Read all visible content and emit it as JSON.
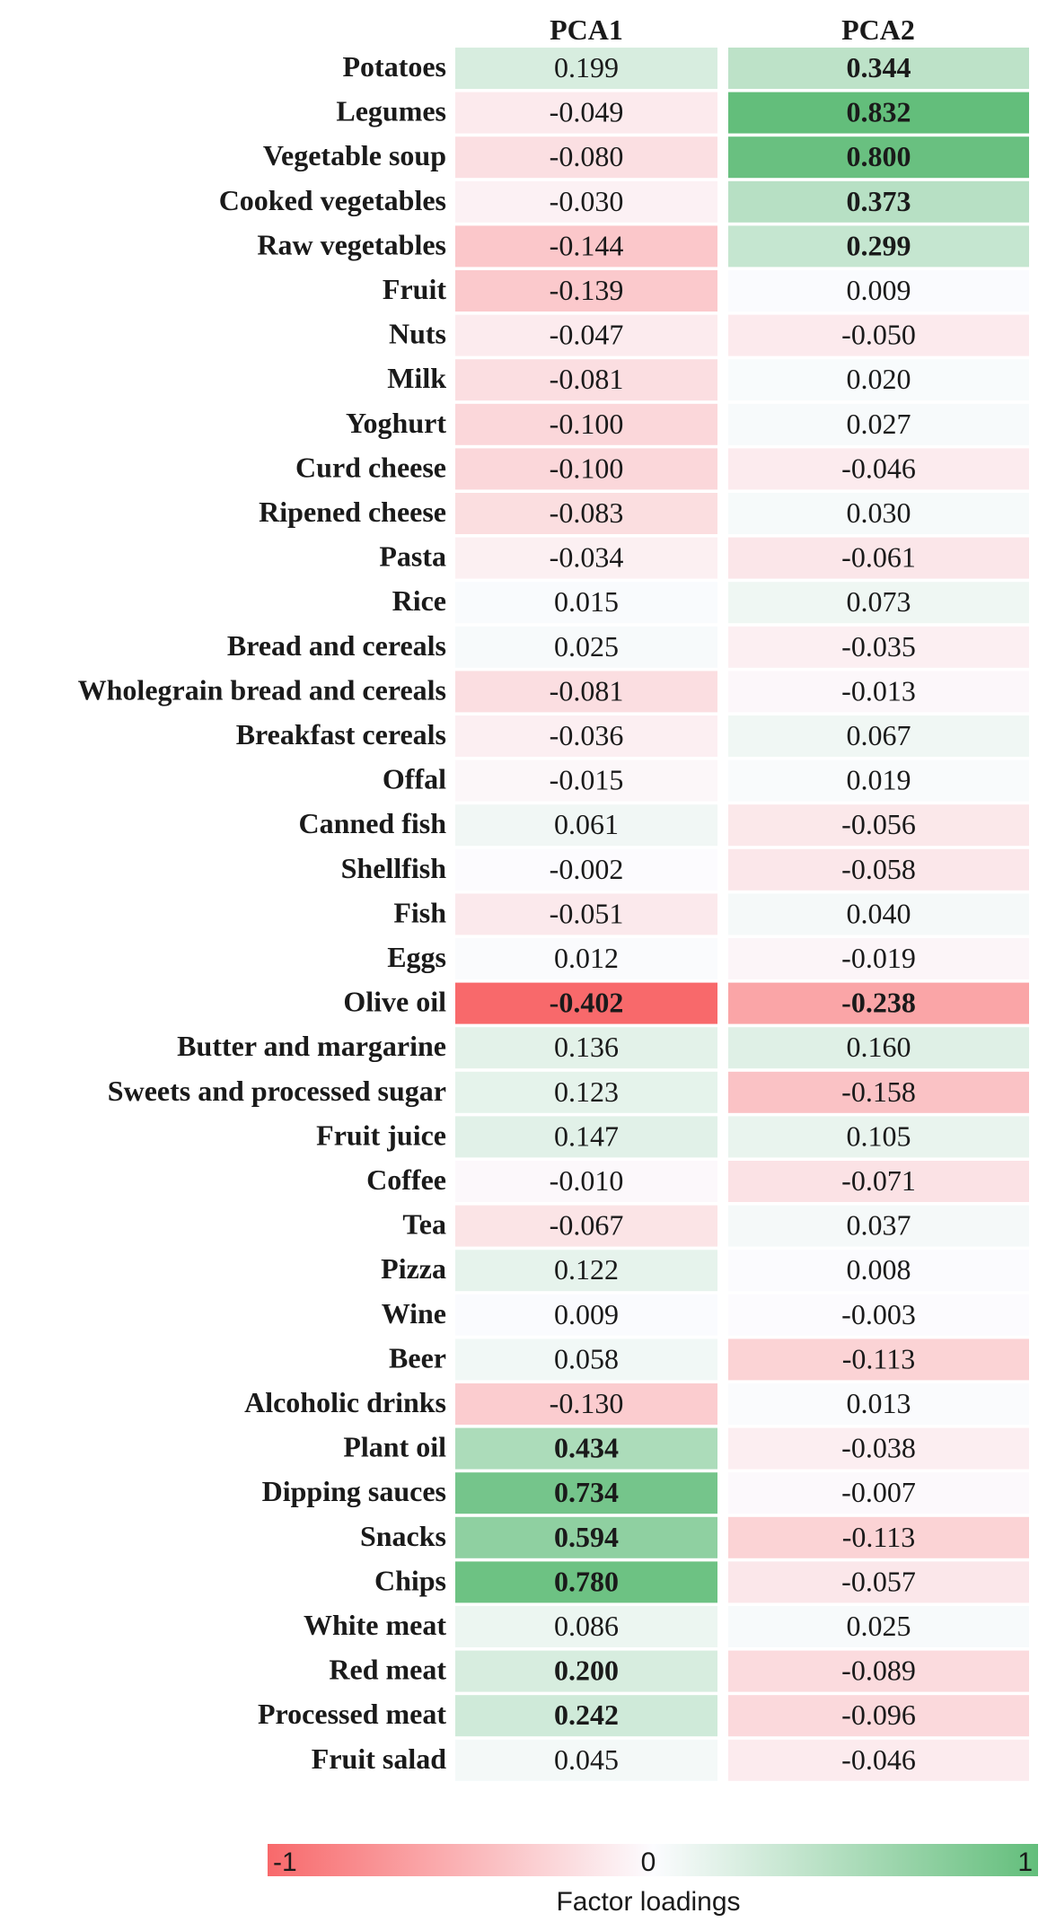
{
  "chart_data": {
    "type": "heatmap",
    "title": "",
    "columns": [
      "PCA1",
      "PCA2"
    ],
    "rows": [
      {
        "label": "Potatoes",
        "values": [
          0.199,
          0.344
        ],
        "text": [
          "0.199",
          "0.344"
        ],
        "bold": [
          false,
          true
        ]
      },
      {
        "label": "Legumes",
        "values": [
          -0.049,
          0.832
        ],
        "text": [
          "-0.049",
          "0.832"
        ],
        "bold": [
          false,
          true
        ]
      },
      {
        "label": "Vegetable soup",
        "values": [
          -0.08,
          0.8
        ],
        "text": [
          "-0.080",
          "0.800"
        ],
        "bold": [
          false,
          true
        ]
      },
      {
        "label": "Cooked vegetables",
        "values": [
          -0.03,
          0.373
        ],
        "text": [
          "-0.030",
          "0.373"
        ],
        "bold": [
          false,
          true
        ]
      },
      {
        "label": "Raw vegetables",
        "values": [
          -0.144,
          0.299
        ],
        "text": [
          "-0.144",
          "0.299"
        ],
        "bold": [
          false,
          true
        ]
      },
      {
        "label": "Fruit",
        "values": [
          -0.139,
          0.009
        ],
        "text": [
          "-0.139",
          "0.009"
        ],
        "bold": [
          false,
          false
        ]
      },
      {
        "label": "Nuts",
        "values": [
          -0.047,
          -0.05
        ],
        "text": [
          "-0.047",
          "-0.050"
        ],
        "bold": [
          false,
          false
        ]
      },
      {
        "label": "Milk",
        "values": [
          -0.081,
          0.02
        ],
        "text": [
          "-0.081",
          "0.020"
        ],
        "bold": [
          false,
          false
        ]
      },
      {
        "label": "Yoghurt",
        "values": [
          -0.1,
          0.027
        ],
        "text": [
          "-0.100",
          "0.027"
        ],
        "bold": [
          false,
          false
        ]
      },
      {
        "label": "Curd cheese",
        "values": [
          -0.1,
          -0.046
        ],
        "text": [
          "-0.100",
          "-0.046"
        ],
        "bold": [
          false,
          false
        ]
      },
      {
        "label": "Ripened cheese",
        "values": [
          -0.083,
          0.03
        ],
        "text": [
          "-0.083",
          "0.030"
        ],
        "bold": [
          false,
          false
        ]
      },
      {
        "label": "Pasta",
        "values": [
          -0.034,
          -0.061
        ],
        "text": [
          "-0.034",
          "-0.061"
        ],
        "bold": [
          false,
          false
        ]
      },
      {
        "label": "Rice",
        "values": [
          0.015,
          0.073
        ],
        "text": [
          "0.015",
          "0.073"
        ],
        "bold": [
          false,
          false
        ]
      },
      {
        "label": "Bread and cereals",
        "values": [
          0.025,
          -0.035
        ],
        "text": [
          "0.025",
          "-0.035"
        ],
        "bold": [
          false,
          false
        ]
      },
      {
        "label": "Wholegrain bread and cereals",
        "values": [
          -0.081,
          -0.013
        ],
        "text": [
          "-0.081",
          "-0.013"
        ],
        "bold": [
          false,
          false
        ]
      },
      {
        "label": "Breakfast cereals",
        "values": [
          -0.036,
          0.067
        ],
        "text": [
          "-0.036",
          "0.067"
        ],
        "bold": [
          false,
          false
        ]
      },
      {
        "label": "Offal",
        "values": [
          -0.015,
          0.019
        ],
        "text": [
          "-0.015",
          "0.019"
        ],
        "bold": [
          false,
          false
        ]
      },
      {
        "label": "Canned fish",
        "values": [
          0.061,
          -0.056
        ],
        "text": [
          "0.061",
          "-0.056"
        ],
        "bold": [
          false,
          false
        ]
      },
      {
        "label": "Shellfish",
        "values": [
          -0.002,
          -0.058
        ],
        "text": [
          "-0.002",
          "-0.058"
        ],
        "bold": [
          false,
          false
        ]
      },
      {
        "label": "Fish",
        "values": [
          -0.051,
          0.04
        ],
        "text": [
          "-0.051",
          "0.040"
        ],
        "bold": [
          false,
          false
        ]
      },
      {
        "label": "Eggs",
        "values": [
          0.012,
          -0.019
        ],
        "text": [
          "0.012",
          "-0.019"
        ],
        "bold": [
          false,
          false
        ]
      },
      {
        "label": "Olive oil",
        "values": [
          -0.402,
          -0.238
        ],
        "text": [
          "-0.402",
          "-0.238"
        ],
        "bold": [
          true,
          true
        ]
      },
      {
        "label": "Butter and margarine",
        "values": [
          0.136,
          0.16
        ],
        "text": [
          "0.136",
          "0.160"
        ],
        "bold": [
          false,
          false
        ]
      },
      {
        "label": "Sweets and processed sugar",
        "values": [
          0.123,
          -0.158
        ],
        "text": [
          "0.123",
          "-0.158"
        ],
        "bold": [
          false,
          false
        ]
      },
      {
        "label": "Fruit juice",
        "values": [
          0.147,
          0.105
        ],
        "text": [
          "0.147",
          "0.105"
        ],
        "bold": [
          false,
          false
        ]
      },
      {
        "label": "Coffee",
        "values": [
          -0.01,
          -0.071
        ],
        "text": [
          "-0.010",
          "-0.071"
        ],
        "bold": [
          false,
          false
        ]
      },
      {
        "label": "Tea",
        "values": [
          -0.067,
          0.037
        ],
        "text": [
          "-0.067",
          "0.037"
        ],
        "bold": [
          false,
          false
        ]
      },
      {
        "label": "Pizza",
        "values": [
          0.122,
          0.008
        ],
        "text": [
          "0.122",
          "0.008"
        ],
        "bold": [
          false,
          false
        ]
      },
      {
        "label": "Wine",
        "values": [
          0.009,
          -0.003
        ],
        "text": [
          "0.009",
          "-0.003"
        ],
        "bold": [
          false,
          false
        ]
      },
      {
        "label": "Beer",
        "values": [
          0.058,
          -0.113
        ],
        "text": [
          "0.058",
          "-0.113"
        ],
        "bold": [
          false,
          false
        ]
      },
      {
        "label": "Alcoholic drinks",
        "values": [
          -0.13,
          0.013
        ],
        "text": [
          "-0.130",
          "0.013"
        ],
        "bold": [
          false,
          false
        ]
      },
      {
        "label": "Plant oil",
        "values": [
          0.434,
          -0.038
        ],
        "text": [
          "0.434",
          "-0.038"
        ],
        "bold": [
          true,
          false
        ]
      },
      {
        "label": "Dipping sauces",
        "values": [
          0.734,
          -0.007
        ],
        "text": [
          "0.734",
          "-0.007"
        ],
        "bold": [
          true,
          false
        ]
      },
      {
        "label": "Snacks",
        "values": [
          0.594,
          -0.113
        ],
        "text": [
          "0.594",
          "-0.113"
        ],
        "bold": [
          true,
          false
        ]
      },
      {
        "label": "Chips",
        "values": [
          0.78,
          -0.057
        ],
        "text": [
          "0.780",
          "-0.057"
        ],
        "bold": [
          true,
          false
        ]
      },
      {
        "label": "White meat",
        "values": [
          0.086,
          0.025
        ],
        "text": [
          "0.086",
          "0.025"
        ],
        "bold": [
          false,
          false
        ]
      },
      {
        "label": "Red meat",
        "values": [
          0.2,
          -0.089
        ],
        "text": [
          "0.200",
          "-0.089"
        ],
        "bold": [
          true,
          false
        ]
      },
      {
        "label": "Processed meat",
        "values": [
          0.242,
          -0.096
        ],
        "text": [
          "0.242",
          "-0.096"
        ],
        "bold": [
          true,
          false
        ]
      },
      {
        "label": "Fruit salad",
        "values": [
          0.045,
          -0.046
        ],
        "text": [
          "0.045",
          "-0.046"
        ],
        "bold": [
          false,
          false
        ]
      }
    ],
    "colorbar": {
      "min_label": "-1",
      "mid_label": "0",
      "max_label": "1",
      "title": "Factor loadings",
      "range": [
        -1,
        1
      ],
      "colors": {
        "negative": "#f8696b",
        "neutral": "#fcfcff",
        "positive": "#63be7b"
      }
    }
  }
}
